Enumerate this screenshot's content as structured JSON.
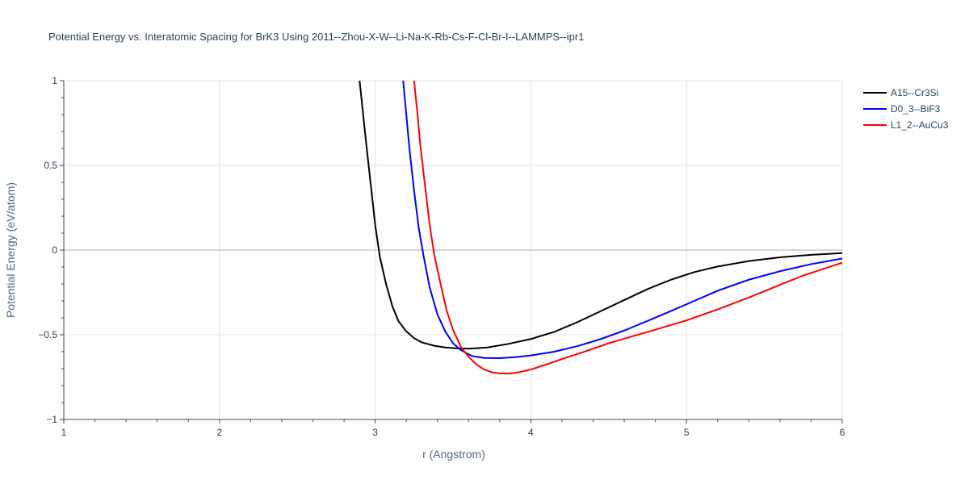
{
  "chart_data": {
    "type": "line",
    "title": "Potential Energy vs. Interatomic Spacing for BrK3 Using 2011--Zhou-X-W--Li-Na-K-Rb-Cs-F-Cl-Br-I--LAMMPS--ipr1",
    "xlabel": "r (Angstrom)",
    "ylabel": "Potential Energy (eV/atom)",
    "xlim": [
      1,
      6
    ],
    "ylim": [
      -1,
      1
    ],
    "xticks": [
      1,
      2,
      3,
      4,
      5,
      6
    ],
    "xtick_labels": [
      "1",
      "2",
      "3",
      "4",
      "5",
      "6"
    ],
    "yticks": [
      -1,
      -0.5,
      0,
      0.5,
      1
    ],
    "ytick_labels": [
      "−1",
      "−0.5",
      "0",
      "0.5",
      "1"
    ],
    "grid": true,
    "legend_position": "top-right",
    "series": [
      {
        "name": "A15--Cr3Si",
        "color": "#000000",
        "x": [
          2.9,
          2.94,
          2.97,
          3.0,
          3.03,
          3.07,
          3.11,
          3.15,
          3.2,
          3.25,
          3.3,
          3.38,
          3.45,
          3.52,
          3.6,
          3.72,
          3.85,
          4.0,
          4.15,
          4.3,
          4.45,
          4.6,
          4.75,
          4.9,
          5.05,
          5.2,
          5.4,
          5.6,
          5.8,
          6.0
        ],
        "y": [
          1.0,
          0.65,
          0.4,
          0.15,
          -0.04,
          -0.2,
          -0.33,
          -0.42,
          -0.48,
          -0.52,
          -0.545,
          -0.565,
          -0.575,
          -0.58,
          -0.582,
          -0.575,
          -0.555,
          -0.525,
          -0.483,
          -0.425,
          -0.36,
          -0.295,
          -0.23,
          -0.175,
          -0.13,
          -0.097,
          -0.065,
          -0.043,
          -0.028,
          -0.018
        ]
      },
      {
        "name": "D0_3--BiF3",
        "color": "#0000ff",
        "x": [
          3.18,
          3.2,
          3.22,
          3.25,
          3.28,
          3.31,
          3.35,
          3.4,
          3.45,
          3.5,
          3.55,
          3.62,
          3.7,
          3.8,
          3.9,
          4.0,
          4.15,
          4.3,
          4.45,
          4.6,
          4.75,
          4.9,
          5.05,
          5.2,
          5.4,
          5.6,
          5.8,
          6.0
        ],
        "y": [
          1.0,
          0.8,
          0.6,
          0.35,
          0.13,
          -0.03,
          -0.22,
          -0.38,
          -0.48,
          -0.55,
          -0.59,
          -0.625,
          -0.637,
          -0.638,
          -0.632,
          -0.622,
          -0.6,
          -0.567,
          -0.525,
          -0.475,
          -0.418,
          -0.36,
          -0.3,
          -0.24,
          -0.175,
          -0.125,
          -0.083,
          -0.05
        ]
      },
      {
        "name": "L1_2--AuCu3",
        "color": "#ff0000",
        "x": [
          3.25,
          3.27,
          3.29,
          3.32,
          3.35,
          3.38,
          3.42,
          3.46,
          3.5,
          3.55,
          3.6,
          3.65,
          3.7,
          3.75,
          3.8,
          3.86,
          3.92,
          4.0,
          4.1,
          4.2,
          4.35,
          4.5,
          4.65,
          4.8,
          5.0,
          5.2,
          5.4,
          5.6,
          5.75,
          5.9,
          6.0
        ],
        "y": [
          1.0,
          0.82,
          0.62,
          0.38,
          0.15,
          -0.03,
          -0.2,
          -0.36,
          -0.47,
          -0.57,
          -0.63,
          -0.675,
          -0.705,
          -0.722,
          -0.728,
          -0.729,
          -0.722,
          -0.705,
          -0.675,
          -0.643,
          -0.598,
          -0.55,
          -0.51,
          -0.47,
          -0.415,
          -0.35,
          -0.28,
          -0.205,
          -0.15,
          -0.105,
          -0.075
        ]
      }
    ]
  }
}
